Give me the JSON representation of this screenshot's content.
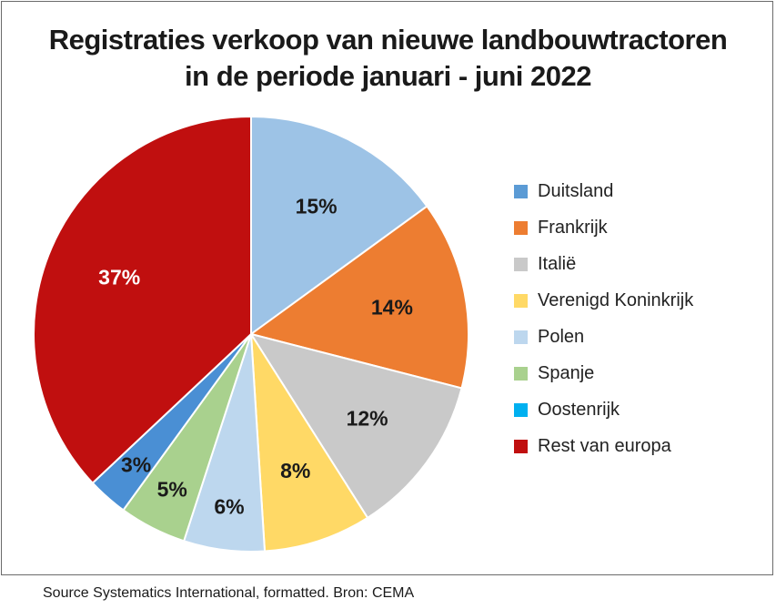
{
  "chart_data": {
    "type": "pie",
    "title_lines": [
      "Registraties verkoop van nieuwe landbouwtractoren",
      "in de periode januari - juni 2022"
    ],
    "slices": [
      {
        "label": "Duitsland",
        "value": 15,
        "display": "15%",
        "color": "#9dc3e6",
        "text_color": "#1a1a1a"
      },
      {
        "label": "Frankrijk",
        "value": 14,
        "display": "14%",
        "color": "#ed7d31",
        "text_color": "#1a1a1a"
      },
      {
        "label": "Italië",
        "value": 12,
        "display": "12%",
        "color": "#c9c9c9",
        "text_color": "#1a1a1a"
      },
      {
        "label": "Verenigd Koninkrijk",
        "value": 8,
        "display": "8%",
        "color": "#ffd966",
        "text_color": "#1a1a1a"
      },
      {
        "label": "Polen",
        "value": 6,
        "display": "6%",
        "color": "#bdd7ee",
        "text_color": "#1a1a1a"
      },
      {
        "label": "Spanje",
        "value": 5,
        "display": "5%",
        "color": "#a9d18e",
        "text_color": "#1a1a1a"
      },
      {
        "label": "Oostenrijk",
        "value": 3,
        "display": "3%",
        "color": "#4a8fd4",
        "text_color": "#1a1a1a"
      },
      {
        "label": "Rest van europa",
        "value": 37,
        "display": "37%",
        "color": "#c00f0f",
        "text_color": "#ffffff"
      }
    ],
    "legend": {
      "position": "right",
      "items": [
        {
          "label": "Duitsland",
          "color": "#5b9bd5"
        },
        {
          "label": "Frankrijk",
          "color": "#ed7d31"
        },
        {
          "label": "Italië",
          "color": "#c9c9c9"
        },
        {
          "label": "Verenigd Koninkrijk",
          "color": "#ffd966"
        },
        {
          "label": "Polen",
          "color": "#bdd7ee"
        },
        {
          "label": "Spanje",
          "color": "#a9d18e"
        },
        {
          "label": "Oostenrijk",
          "color": "#00b0f0"
        },
        {
          "label": "Rest van europa",
          "color": "#c00f0f"
        }
      ]
    }
  },
  "source": "Source Systematics International, formatted. Bron: CEMA"
}
